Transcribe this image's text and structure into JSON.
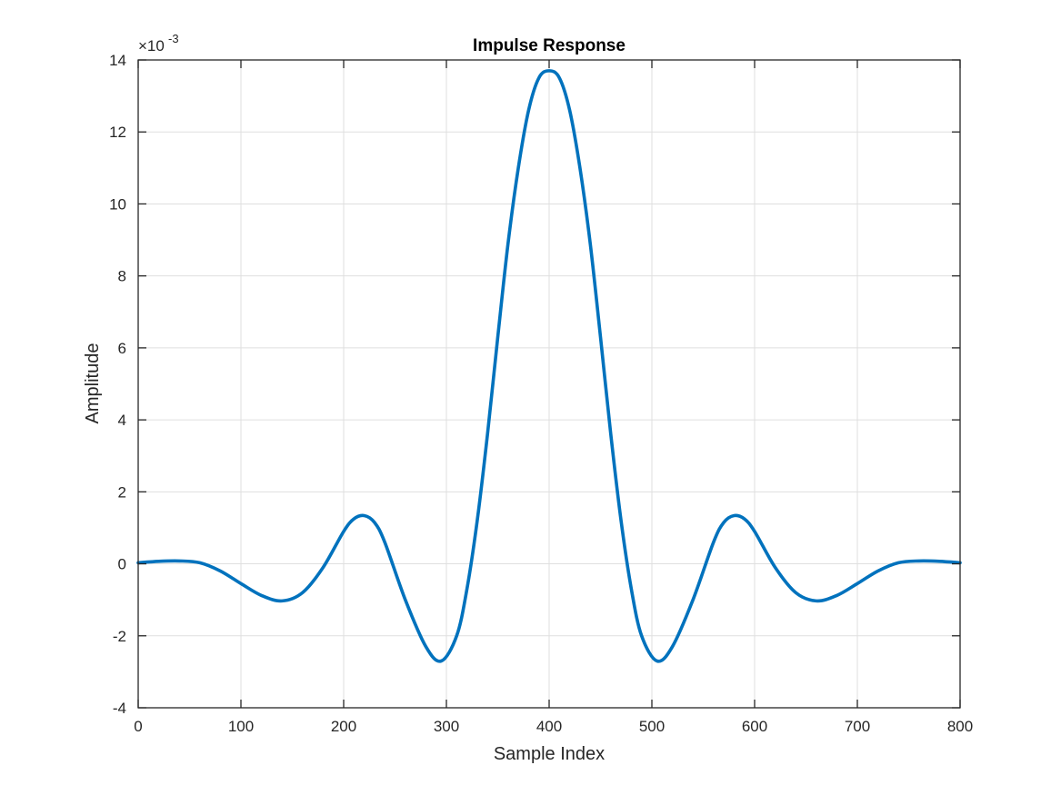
{
  "chart_data": {
    "type": "line",
    "title": "Impulse Response",
    "xlabel": "Sample Index",
    "ylabel": "Amplitude",
    "y_exponent_label": "×10",
    "y_exponent_power": "-3",
    "xlim": [
      0,
      800
    ],
    "ylim": [
      -4,
      14
    ],
    "y_scale_factor": 0.001,
    "grid": true,
    "x_ticks": [
      0,
      100,
      200,
      300,
      400,
      500,
      600,
      700,
      800
    ],
    "y_ticks": [
      -4,
      -2,
      0,
      2,
      4,
      6,
      8,
      10,
      12,
      14
    ],
    "line_color": "#0072BD",
    "series": [
      {
        "name": "Impulse Response",
        "x": [
          0,
          20,
          40,
          60,
          80,
          100,
          120,
          140,
          160,
          180,
          200,
          210,
          220,
          230,
          240,
          260,
          280,
          295,
          310,
          320,
          330,
          340,
          350,
          360,
          370,
          380,
          390,
          400,
          410,
          420,
          430,
          440,
          450,
          460,
          470,
          480,
          490,
          505,
          520,
          540,
          560,
          570,
          580,
          590,
          600,
          620,
          640,
          660,
          680,
          700,
          720,
          740,
          760,
          780,
          800
        ],
        "values": [
          0.03,
          0.07,
          0.08,
          0.03,
          -0.2,
          -0.55,
          -0.88,
          -1.03,
          -0.8,
          -0.1,
          0.9,
          1.25,
          1.34,
          1.15,
          0.6,
          -1.0,
          -2.3,
          -2.7,
          -2.0,
          -0.7,
          1.2,
          3.6,
          6.3,
          8.9,
          11.0,
          12.6,
          13.5,
          13.7,
          13.5,
          12.6,
          11.0,
          8.9,
          6.3,
          3.6,
          1.2,
          -0.7,
          -2.0,
          -2.7,
          -2.3,
          -1.0,
          0.6,
          1.15,
          1.34,
          1.25,
          0.9,
          -0.1,
          -0.8,
          -1.03,
          -0.88,
          -0.55,
          -0.2,
          0.03,
          0.08,
          0.07,
          0.03
        ]
      }
    ]
  }
}
